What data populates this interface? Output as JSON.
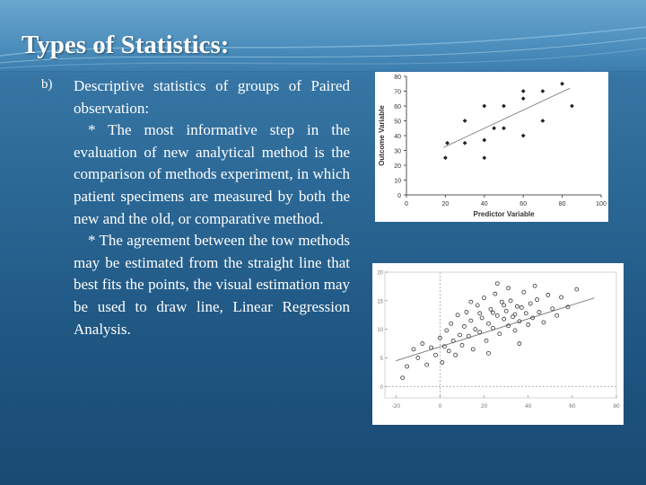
{
  "slide": {
    "title": "Types of Statistics:",
    "bullet_marker": "b)",
    "paragraphs": [
      "Descriptive statistics of groups of Paired observation:",
      "* The most informative step in the evaluation of new analytical method is the comparison of methods experiment, in which patient specimens are measured by both the new and the old, or comparative method.",
      "* The agreement between the tow methods may be estimated from the straight line that best fits the points, the visual estimation may be used to draw line, Linear Regression Analysis."
    ],
    "colors": {
      "background": "#1f5682",
      "title_band": "#4d8fbd",
      "text": "#ffffff"
    }
  },
  "chart_data": [
    {
      "type": "scatter",
      "title": "",
      "xlabel": "Predictor Variable",
      "ylabel": "Outcome Variable",
      "xlim": [
        0,
        100
      ],
      "ylim": [
        0,
        80
      ],
      "xticks": [
        "0",
        "20",
        "40",
        "60",
        "80",
        "100"
      ],
      "yticks": [
        "0",
        "10",
        "20",
        "30",
        "40",
        "50",
        "60",
        "70",
        "80"
      ],
      "grid": false,
      "points": [
        {
          "x": 20,
          "y": 25
        },
        {
          "x": 21,
          "y": 35
        },
        {
          "x": 30,
          "y": 35
        },
        {
          "x": 30,
          "y": 50
        },
        {
          "x": 40,
          "y": 25
        },
        {
          "x": 40,
          "y": 37
        },
        {
          "x": 40,
          "y": 60
        },
        {
          "x": 45,
          "y": 45
        },
        {
          "x": 50,
          "y": 45
        },
        {
          "x": 50,
          "y": 60
        },
        {
          "x": 60,
          "y": 40
        },
        {
          "x": 60,
          "y": 65
        },
        {
          "x": 60,
          "y": 70
        },
        {
          "x": 70,
          "y": 50
        },
        {
          "x": 70,
          "y": 70
        },
        {
          "x": 80,
          "y": 75
        },
        {
          "x": 85,
          "y": 60
        }
      ],
      "trendline": {
        "x": [
          19,
          84
        ],
        "y": [
          32,
          72
        ]
      }
    },
    {
      "type": "scatter",
      "title": "",
      "xlabel": "",
      "ylabel": "",
      "xlim": [
        -25,
        80
      ],
      "ylim": [
        -2,
        20
      ],
      "xticks": [
        "-20",
        "0",
        "20",
        "40",
        "60",
        "80"
      ],
      "yticks": [
        "0",
        "5",
        "10",
        "15",
        "20"
      ],
      "grid": false,
      "dashed_reference_lines": {
        "x": 0,
        "y": 0
      },
      "trendline": {
        "x": [
          -20,
          70
        ],
        "y": [
          4.5,
          15.5
        ]
      },
      "points": [
        {
          "x": -17,
          "y": 1.5
        },
        {
          "x": -15,
          "y": 3.5
        },
        {
          "x": -12,
          "y": 6.5
        },
        {
          "x": -10,
          "y": 5.0
        },
        {
          "x": -8,
          "y": 7.5
        },
        {
          "x": -6,
          "y": 3.8
        },
        {
          "x": -4,
          "y": 6.8
        },
        {
          "x": -2,
          "y": 5.5
        },
        {
          "x": 0,
          "y": 8.5
        },
        {
          "x": 1,
          "y": 4.2
        },
        {
          "x": 2,
          "y": 7.0
        },
        {
          "x": 3,
          "y": 9.8
        },
        {
          "x": 4,
          "y": 6.2
        },
        {
          "x": 5,
          "y": 11.0
        },
        {
          "x": 6,
          "y": 8.0
        },
        {
          "x": 7,
          "y": 5.5
        },
        {
          "x": 8,
          "y": 12.5
        },
        {
          "x": 9,
          "y": 9.0
        },
        {
          "x": 10,
          "y": 7.2
        },
        {
          "x": 11,
          "y": 10.5
        },
        {
          "x": 12,
          "y": 13.0
        },
        {
          "x": 13,
          "y": 8.8
        },
        {
          "x": 14,
          "y": 11.5
        },
        {
          "x": 15,
          "y": 6.5
        },
        {
          "x": 16,
          "y": 10.0
        },
        {
          "x": 17,
          "y": 14.2
        },
        {
          "x": 18,
          "y": 9.5
        },
        {
          "x": 19,
          "y": 12.0
        },
        {
          "x": 20,
          "y": 15.5
        },
        {
          "x": 21,
          "y": 8.0
        },
        {
          "x": 22,
          "y": 11.0
        },
        {
          "x": 23,
          "y": 13.5
        },
        {
          "x": 24,
          "y": 10.2
        },
        {
          "x": 25,
          "y": 16.2
        },
        {
          "x": 26,
          "y": 12.4
        },
        {
          "x": 27,
          "y": 9.2
        },
        {
          "x": 28,
          "y": 14.8
        },
        {
          "x": 29,
          "y": 11.8
        },
        {
          "x": 30,
          "y": 13.2
        },
        {
          "x": 31,
          "y": 10.6
        },
        {
          "x": 32,
          "y": 15.0
        },
        {
          "x": 33,
          "y": 12.2
        },
        {
          "x": 34,
          "y": 9.8
        },
        {
          "x": 35,
          "y": 14.0
        },
        {
          "x": 36,
          "y": 11.4
        },
        {
          "x": 37,
          "y": 13.8
        },
        {
          "x": 38,
          "y": 16.5
        },
        {
          "x": 39,
          "y": 12.8
        },
        {
          "x": 40,
          "y": 10.8
        },
        {
          "x": 41,
          "y": 14.5
        },
        {
          "x": 42,
          "y": 12.0
        },
        {
          "x": 44,
          "y": 15.2
        },
        {
          "x": 45,
          "y": 13.0
        },
        {
          "x": 47,
          "y": 11.2
        },
        {
          "x": 49,
          "y": 16.0
        },
        {
          "x": 51,
          "y": 13.6
        },
        {
          "x": 53,
          "y": 12.4
        },
        {
          "x": 55,
          "y": 15.6
        },
        {
          "x": 58,
          "y": 13.9
        },
        {
          "x": 62,
          "y": 17.0
        },
        {
          "x": 26,
          "y": 18.0
        },
        {
          "x": 31,
          "y": 17.2
        },
        {
          "x": 22,
          "y": 5.8
        },
        {
          "x": 36,
          "y": 7.5
        },
        {
          "x": 14,
          "y": 14.8
        },
        {
          "x": 43,
          "y": 17.6
        },
        {
          "x": 18,
          "y": 12.8
        },
        {
          "x": 29,
          "y": 14.2
        },
        {
          "x": 34,
          "y": 12.6
        },
        {
          "x": 24,
          "y": 12.9
        }
      ]
    }
  ]
}
